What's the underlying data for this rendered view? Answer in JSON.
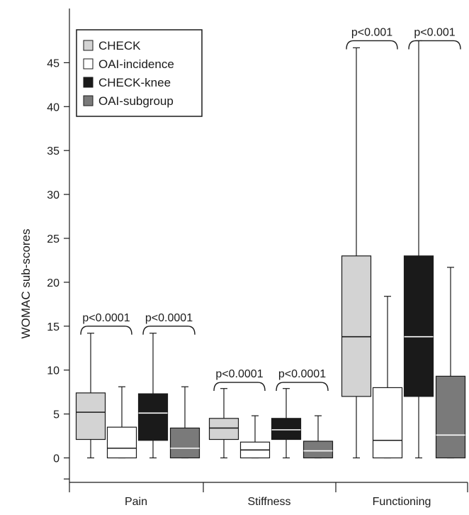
{
  "chart_data": {
    "type": "box",
    "ylabel": "WOMAC sub-scores",
    "xlabel": "",
    "ylim": [
      -2.5,
      50
    ],
    "yticks": [
      0,
      5,
      10,
      15,
      20,
      25,
      30,
      35,
      40,
      45
    ],
    "groups": [
      "Pain",
      "Stiffness",
      "Functioning"
    ],
    "legend_position": "top-left",
    "series": [
      {
        "name": "CHECK",
        "color": "#d3d3d3",
        "median_color": "#1a1a1a"
      },
      {
        "name": "OAI-incidence",
        "color": "#ffffff",
        "median_color": "#1a1a1a"
      },
      {
        "name": "CHECK-knee",
        "color": "#1a1a1a",
        "median_color": "#ffffff"
      },
      {
        "name": "OAI-subgroup",
        "color": "#7a7a7a",
        "median_color": "#ffffff"
      }
    ],
    "boxes": [
      {
        "group": "Pain",
        "series": "CHECK",
        "min": 0,
        "q1": 2.1,
        "median": 5.2,
        "q3": 7.4,
        "max": 14.2
      },
      {
        "group": "Pain",
        "series": "OAI-incidence",
        "min": 0,
        "q1": 0,
        "median": 1.1,
        "q3": 3.5,
        "max": 8.1
      },
      {
        "group": "Pain",
        "series": "CHECK-knee",
        "min": 0,
        "q1": 2.0,
        "median": 5.1,
        "q3": 7.3,
        "max": 14.2
      },
      {
        "group": "Pain",
        "series": "OAI-subgroup",
        "min": 0,
        "q1": 0,
        "median": 1.1,
        "q3": 3.4,
        "max": 8.1
      },
      {
        "group": "Stiffness",
        "series": "CHECK",
        "min": 0,
        "q1": 2.1,
        "median": 3.4,
        "q3": 4.5,
        "max": 7.9
      },
      {
        "group": "Stiffness",
        "series": "OAI-incidence",
        "min": 0,
        "q1": 0,
        "median": 0.9,
        "q3": 1.8,
        "max": 4.8
      },
      {
        "group": "Stiffness",
        "series": "CHECK-knee",
        "min": 0,
        "q1": 2.1,
        "median": 3.2,
        "q3": 4.5,
        "max": 7.9
      },
      {
        "group": "Stiffness",
        "series": "OAI-subgroup",
        "min": 0,
        "q1": 0,
        "median": 0.8,
        "q3": 1.9,
        "max": 4.8
      },
      {
        "group": "Functioning",
        "series": "CHECK",
        "min": 0,
        "q1": 7.0,
        "median": 13.8,
        "q3": 23.0,
        "max": 46.7
      },
      {
        "group": "Functioning",
        "series": "OAI-incidence",
        "min": 0,
        "q1": 0,
        "median": 2.0,
        "q3": 8.0,
        "max": 18.4
      },
      {
        "group": "Functioning",
        "series": "CHECK-knee",
        "min": 0,
        "q1": 7.0,
        "median": 13.8,
        "q3": 23.0,
        "max": 47.5
      },
      {
        "group": "Functioning",
        "series": "OAI-subgroup",
        "min": 0,
        "q1": 0,
        "median": 2.6,
        "q3": 9.3,
        "max": 21.7
      }
    ],
    "annotations": [
      {
        "text": "p<0.0001",
        "group": "Pain",
        "pair": [
          "CHECK",
          "OAI-incidence"
        ],
        "y": 15
      },
      {
        "text": "p<0.0001",
        "group": "Pain",
        "pair": [
          "CHECK-knee",
          "OAI-subgroup"
        ],
        "y": 15
      },
      {
        "text": "p<0.0001",
        "group": "Stiffness",
        "pair": [
          "CHECK",
          "OAI-incidence"
        ],
        "y": 8.6
      },
      {
        "text": "p<0.0001",
        "group": "Stiffness",
        "pair": [
          "CHECK-knee",
          "OAI-subgroup"
        ],
        "y": 8.6
      },
      {
        "text": "p<0.001",
        "group": "Functioning",
        "pair": [
          "CHECK",
          "OAI-incidence"
        ],
        "y": 47.5
      },
      {
        "text": "p<0.001",
        "group": "Functioning",
        "pair": [
          "CHECK-knee",
          "OAI-subgroup"
        ],
        "y": 47.5
      }
    ]
  }
}
